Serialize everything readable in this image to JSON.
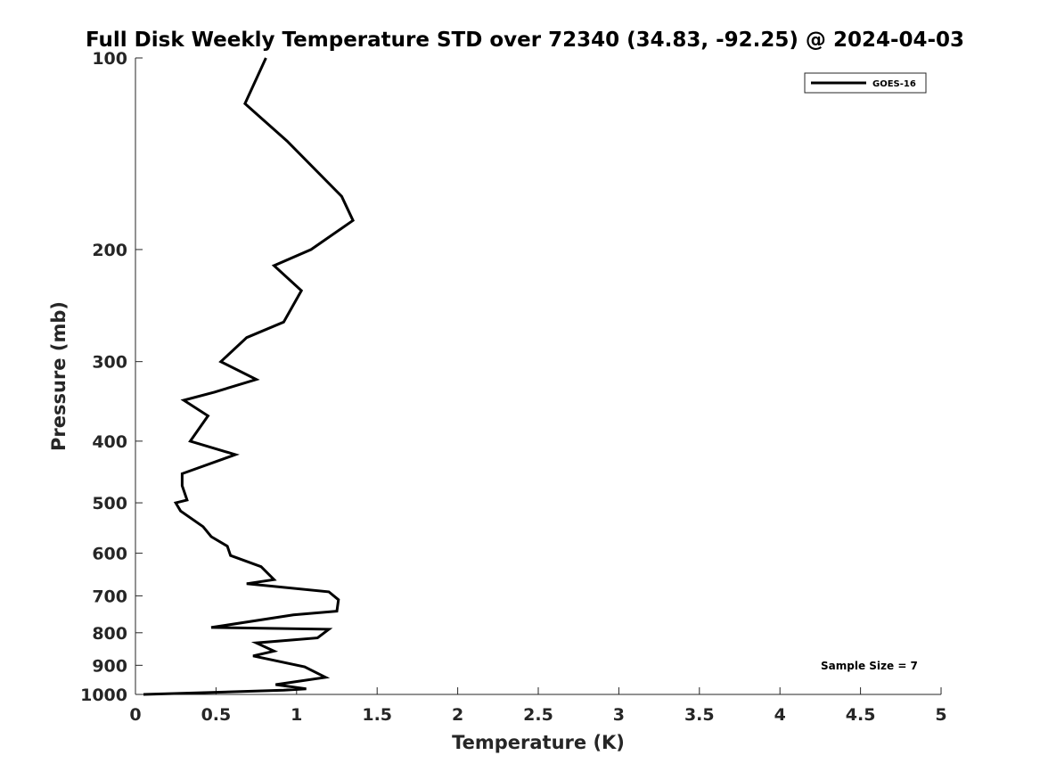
{
  "chart_data": {
    "type": "line",
    "title": "Full Disk Weekly Temperature STD over 72340 (34.83, -92.25) @ 2024-04-03",
    "xlabel": "Temperature (K)",
    "ylabel": "Pressure (mb)",
    "xlim": [
      0,
      5
    ],
    "ylim": [
      100,
      1000
    ],
    "yscale": "log",
    "yaxis_reversed": true,
    "grid": false,
    "legend_position": "top-right",
    "x_ticks": [
      "0",
      "0.5",
      "1",
      "1.5",
      "2",
      "2.5",
      "3",
      "3.5",
      "4",
      "4.5",
      "5"
    ],
    "y_ticks": [
      "100",
      "200",
      "300",
      "400",
      "500",
      "600",
      "700",
      "800",
      "900",
      "1000"
    ],
    "series": [
      {
        "name": "GOES-16",
        "color": "#000000",
        "x": [
          0.81,
          0.68,
          0.94,
          1.28,
          1.35,
          1.09,
          0.86,
          1.03,
          0.92,
          0.69,
          0.53,
          0.75,
          0.49,
          0.3,
          0.45,
          0.34,
          0.62,
          0.29,
          0.29,
          0.32,
          0.25,
          0.28,
          0.42,
          0.47,
          0.57,
          0.59,
          0.78,
          0.86,
          0.69,
          1.2,
          1.26,
          1.25,
          0.98,
          0.47,
          1.2,
          1.13,
          0.75,
          0.86,
          0.73,
          1.05,
          1.18,
          0.87,
          1.06,
          0.92,
          0.05
        ],
        "y": [
          100,
          118,
          135,
          165,
          180,
          200,
          212,
          232,
          260,
          275,
          300,
          320,
          335,
          345,
          365,
          400,
          420,
          450,
          470,
          495,
          500,
          515,
          545,
          565,
          585,
          605,
          630,
          660,
          670,
          690,
          710,
          740,
          750,
          785,
          790,
          815,
          830,
          855,
          870,
          905,
          940,
          965,
          980,
          985,
          1000
        ]
      }
    ],
    "annotations": [
      "Sample Size = 7"
    ]
  }
}
